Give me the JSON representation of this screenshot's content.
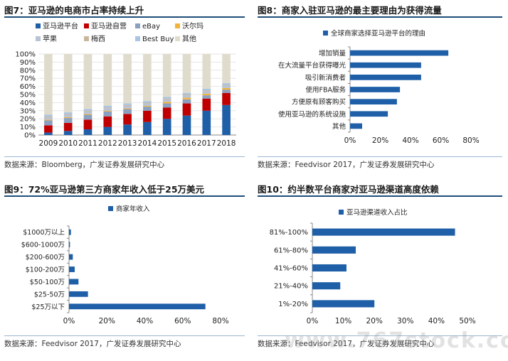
{
  "colors": {
    "amazon_3p": "#1f5fa8",
    "amazon_1p": "#c00000",
    "ebay": "#8aa0c0",
    "walmart": "#f2b33d",
    "apple": "#b8c3d6",
    "macys": "#c9b79c",
    "bestbuy": "#a9c4e4",
    "other": "#e0dccd",
    "bar": "#1f5fa8",
    "accent_rule": "#1f4e79"
  },
  "watermark": "www.767stock.com",
  "panels": [
    {
      "title": "图7：亚马逊的电商市占率持续上升",
      "source": "数据来源：Bloomberg，广发证券发展研究中心"
    },
    {
      "title": "图8：商家入驻亚马逊的最主要理由为获得流量",
      "source": "数据来源：Feedvisor 2017，广发证券发展研究中心"
    },
    {
      "title": "图9：72%亚马逊第三方商家年收入低于25万美元",
      "source": "数据来源：Feedvisor 2017，广发证券发展研究中心"
    },
    {
      "title": "图10：约半数平台商家对亚马逊渠道高度依赖",
      "source": "数据来源：Feedvisor 2017，广发证券发展研究中心"
    }
  ],
  "chart_data": [
    {
      "type": "bar",
      "stacked": true,
      "percent": true,
      "categories": [
        "2009",
        "2010",
        "2011",
        "2012",
        "2013",
        "2014",
        "2015",
        "2016",
        "2017",
        "2018"
      ],
      "series": [
        {
          "name": "亚马逊平台",
          "color_key": "amazon_3p",
          "values": [
            3,
            5,
            7,
            10,
            13,
            16,
            20,
            24,
            30,
            37
          ]
        },
        {
          "name": "亚马逊自营",
          "color_key": "amazon_1p",
          "values": [
            9,
            10,
            12,
            13,
            13,
            14,
            14,
            15,
            15,
            15
          ]
        },
        {
          "name": "eBay",
          "color_key": "ebay",
          "values": [
            6,
            6,
            6,
            6,
            6,
            5,
            5,
            5,
            4,
            4
          ]
        },
        {
          "name": "沃尔玛",
          "color_key": "walmart",
          "values": [
            1,
            1,
            1,
            1,
            1,
            1,
            2,
            2,
            2,
            2
          ]
        },
        {
          "name": "苹果",
          "color_key": "apple",
          "values": [
            3,
            3,
            3,
            3,
            3,
            3,
            3,
            3,
            3,
            3
          ]
        },
        {
          "name": "梅西",
          "color_key": "macys",
          "values": [
            1,
            1,
            1,
            1,
            1,
            1,
            1,
            1,
            1,
            1
          ]
        },
        {
          "name": "Best Buy",
          "color_key": "bestbuy",
          "values": [
            2,
            2,
            2,
            2,
            2,
            2,
            2,
            2,
            2,
            2
          ]
        },
        {
          "name": "其他",
          "color_key": "other",
          "values": [
            75,
            72,
            68,
            64,
            61,
            58,
            53,
            48,
            43,
            36
          ]
        }
      ],
      "ylim": [
        0,
        100
      ],
      "yticks": [
        "0%",
        "10%",
        "20%",
        "30%",
        "40%",
        "50%",
        "60%",
        "70%",
        "80%",
        "90%",
        "100%"
      ],
      "legend": "top"
    },
    {
      "type": "bar",
      "orientation": "horizontal",
      "series": [
        {
          "name": "全球商家选择亚马逊平台的理由",
          "values": [
            65,
            47,
            47,
            33,
            31,
            25,
            8
          ]
        }
      ],
      "categories": [
        "增加销量",
        "在大流量平台获得曝光",
        "吸引新消费者",
        "使用FBA服务",
        "方便原有顾客购买",
        "使用亚马逊的系统设施",
        "其他"
      ],
      "xlim": [
        0,
        80
      ],
      "xticks": [
        "0%",
        "20%",
        "40%",
        "60%",
        "80%"
      ],
      "legend": "top-left"
    },
    {
      "type": "bar",
      "orientation": "horizontal",
      "series": [
        {
          "name": "商家年收入",
          "values": [
            1,
            0.5,
            2,
            3,
            5,
            10,
            72
          ]
        }
      ],
      "categories": [
        "$1000万以上",
        "$600-1000万",
        "$200-600万",
        "$100-200万",
        "$50-100万",
        "$25-50万",
        "$25万以下"
      ],
      "xlim": [
        0,
        80
      ],
      "xticks": [
        "0%",
        "20%",
        "40%",
        "60%",
        "80%"
      ],
      "legend": "top-left"
    },
    {
      "type": "bar",
      "orientation": "horizontal",
      "series": [
        {
          "name": "亚马逊渠道收入占比",
          "values": [
            46,
            14,
            11,
            9,
            20
          ]
        }
      ],
      "categories": [
        "81%-100%",
        "61%-80%",
        "41%-60%",
        "21%-40%",
        "1%-20%"
      ],
      "xlim": [
        0,
        50
      ],
      "xticks": [
        "0%",
        "10%",
        "20%",
        "30%",
        "40%",
        "50%"
      ],
      "legend": "top-left"
    }
  ]
}
